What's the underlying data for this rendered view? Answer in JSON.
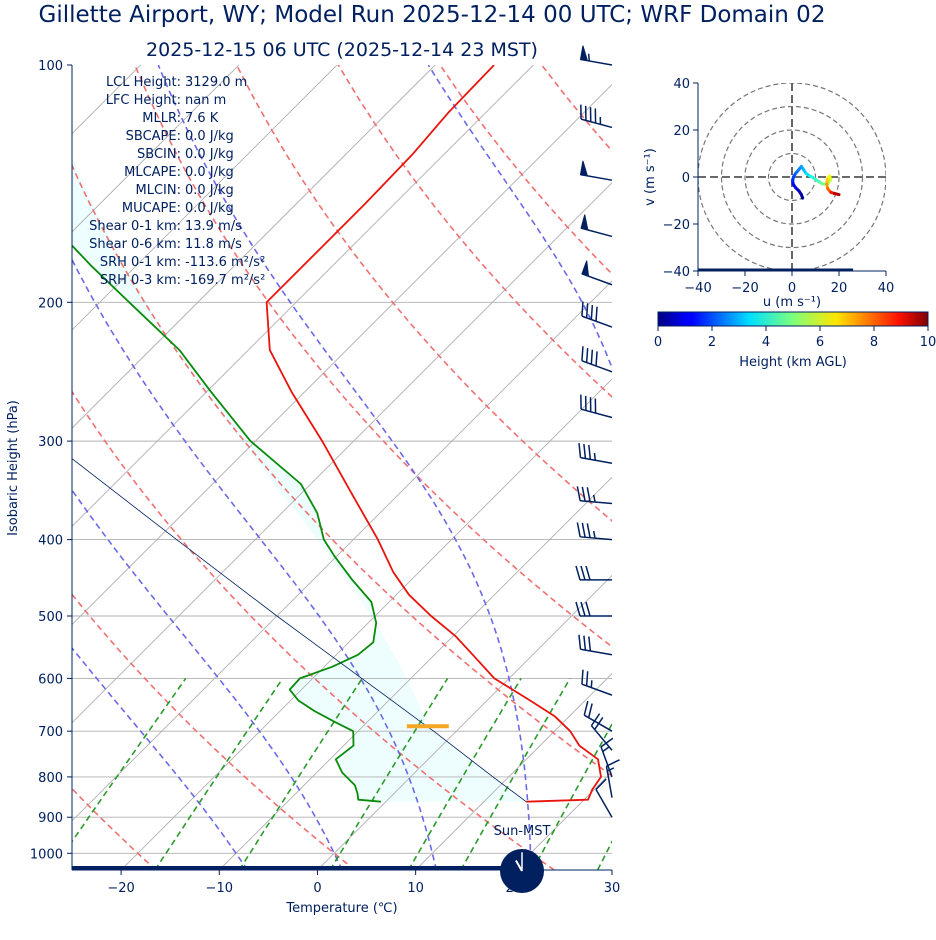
{
  "title": "Gillette  Airport, WY; Model Run 2025-12-14 00 UTC; WRF Domain 02",
  "subtitle": "2025-12-15 06 UTC  (2025-12-14 23 MST)",
  "colors": {
    "text": "#002060",
    "temperature": "#e8140c",
    "dewpoint": "#0a8a0a",
    "dry_adiabat": "#f07070",
    "moist_adiabat": "#6a6ae8",
    "mixing_ratio": "#2a9a2a",
    "isotherm": "#b0b0b0",
    "cape_fill": "#eefefe",
    "lcl_marker": "#f5a623",
    "barbs": "#002060"
  },
  "indices": [
    {
      "label": "LCL Height:",
      "value": "3129.0 m"
    },
    {
      "label": "LFC Height:",
      "value": "nan m"
    },
    {
      "label": "MLLR:",
      "value": "7.6 K"
    },
    {
      "label": "SBCAPE:",
      "value": "0.0 J/kg"
    },
    {
      "label": "SBCIN:",
      "value": "0.0 J/kg"
    },
    {
      "label": "MLCAPE:",
      "value": "0.0 J/kg"
    },
    {
      "label": "MLCIN:",
      "value": "0.0 J/kg"
    },
    {
      "label": "MUCAPE:",
      "value": "0.0 J/kg"
    },
    {
      "label": "Shear 0-1 km:",
      "value": "13.9 m/s"
    },
    {
      "label": "Shear 0-6 km:",
      "value": "11.8 m/s"
    },
    {
      "label": "SRH 0-1 km:",
      "value": "-113.6 m²/s²"
    },
    {
      "label": "SRH 0-3 km:",
      "value": "-169.7 m²/s²"
    }
  ],
  "clock_label": "Sun-MST",
  "clock_time": {
    "hour": 23,
    "minute": 0
  },
  "chart_data": [
    {
      "type": "line",
      "name": "skew-t",
      "xlabel": "Temperature (℃)",
      "ylabel": "Isobaric Height (hPa)",
      "xlim": [
        -25,
        30
      ],
      "ylim": [
        1050,
        100
      ],
      "y_scale": "log",
      "skew": 1.0,
      "x_ticks": [
        "−20",
        "−10",
        "0",
        "10",
        "20",
        "30"
      ],
      "y_ticks": [
        "100",
        "200",
        "300",
        "400",
        "500",
        "600",
        "700",
        "800",
        "900",
        "1000"
      ],
      "x_tick_values": [
        -20,
        -10,
        0,
        10,
        20,
        30
      ],
      "y_tick_values": [
        100,
        200,
        300,
        400,
        500,
        600,
        700,
        800,
        900,
        1000
      ],
      "grid": true,
      "series": [
        {
          "role": "temperature",
          "p": [
            860,
            855,
            830,
            800,
            760,
            730,
            700,
            670,
            640,
            600,
            560,
            530,
            500,
            470,
            440,
            400,
            350,
            300,
            260,
            230,
            200,
            170,
            150,
            130,
            115,
            100
          ],
          "t": [
            14.3,
            20.4,
            19.8,
            19.4,
            17.3,
            14.0,
            11.6,
            8.5,
            4.4,
            -1.5,
            -6.1,
            -9.8,
            -14.3,
            -18.7,
            -22.6,
            -27.5,
            -34.8,
            -43.2,
            -51.3,
            -57.8,
            -63.0,
            -63.0,
            -63.0,
            -63.2,
            -63.8,
            -64.0
          ]
        },
        {
          "role": "dewpoint",
          "p": [
            860,
            855,
            840,
            820,
            790,
            760,
            730,
            700,
            680,
            660,
            640,
            620,
            600,
            580,
            560,
            540,
            510,
            480,
            450,
            420,
            400,
            370,
            340,
            300,
            260,
            230,
            200,
            180,
            160,
            140,
            120,
            100
          ],
          "t": [
            -0.5,
            -3.0,
            -3.7,
            -4.8,
            -7.4,
            -9.4,
            -9.0,
            -10.5,
            -13.5,
            -16.5,
            -19.2,
            -21.2,
            -21.3,
            -19.2,
            -17.8,
            -17.5,
            -19.2,
            -21.8,
            -26.0,
            -30.2,
            -33.0,
            -36.4,
            -41.0,
            -50.5,
            -59.5,
            -67.0,
            -77.0,
            -84.5,
            -92.5,
            -101.0,
            -110.0,
            -118.0
          ]
        },
        {
          "role": "parcel",
          "p": [
            860,
            800,
            700,
            690,
            600,
            500,
            400,
            300,
            250,
            200
          ],
          "t": [
            14.3,
            8.4,
            -2.3,
            -3.5,
            -15.0,
            -30.0,
            -48.0,
            -71.0,
            -84.0,
            -98.0
          ]
        }
      ],
      "lcl": {
        "p": 690,
        "t": -3.4
      },
      "dry_adiabats_theta_c": [
        -40,
        -20,
        0,
        20,
        40,
        60,
        80,
        100,
        120,
        140,
        160,
        180
      ],
      "moist_adiabats_thetaw_c": [
        -10,
        0,
        10,
        20,
        30
      ],
      "mixing_ratios_gkg": [
        0.4,
        1,
        2,
        4,
        7,
        10,
        16,
        24,
        32
      ],
      "isotherms_c": [
        -200,
        -190,
        -180,
        -170,
        -160,
        -150,
        -140,
        -130,
        -120,
        -110,
        -100,
        -90,
        -80,
        -70,
        -60,
        -50,
        -40,
        -30,
        -20,
        -10,
        0,
        10,
        20,
        30
      ],
      "isobars": [
        200,
        300,
        400,
        500,
        600,
        700,
        800,
        900,
        1000
      ],
      "wind_barbs": [
        {
          "p": 100,
          "speed_kt": 55,
          "dir_deg": 280
        },
        {
          "p": 120,
          "speed_kt": 45,
          "dir_deg": 285
        },
        {
          "p": 140,
          "speed_kt": 50,
          "dir_deg": 280
        },
        {
          "p": 165,
          "speed_kt": 50,
          "dir_deg": 285
        },
        {
          "p": 190,
          "speed_kt": 50,
          "dir_deg": 290
        },
        {
          "p": 215,
          "speed_kt": 40,
          "dir_deg": 290
        },
        {
          "p": 245,
          "speed_kt": 40,
          "dir_deg": 290
        },
        {
          "p": 280,
          "speed_kt": 40,
          "dir_deg": 285
        },
        {
          "p": 320,
          "speed_kt": 35,
          "dir_deg": 280
        },
        {
          "p": 360,
          "speed_kt": 35,
          "dir_deg": 275
        },
        {
          "p": 400,
          "speed_kt": 35,
          "dir_deg": 275
        },
        {
          "p": 450,
          "speed_kt": 30,
          "dir_deg": 270
        },
        {
          "p": 500,
          "speed_kt": 30,
          "dir_deg": 270
        },
        {
          "p": 560,
          "speed_kt": 30,
          "dir_deg": 280
        },
        {
          "p": 630,
          "speed_kt": 25,
          "dir_deg": 290
        },
        {
          "p": 700,
          "speed_kt": 20,
          "dir_deg": 300
        },
        {
          "p": 740,
          "speed_kt": 20,
          "dir_deg": 320
        },
        {
          "p": 800,
          "speed_kt": 15,
          "dir_deg": 340
        },
        {
          "p": 850,
          "speed_kt": 15,
          "dir_deg": 350
        },
        {
          "p": 900,
          "speed_kt": 10,
          "dir_deg": 330
        }
      ]
    },
    {
      "type": "line",
      "name": "hodograph",
      "xlabel": "u (m s⁻¹)",
      "ylabel": "v (m s⁻¹)",
      "xlim": [
        -40,
        40
      ],
      "ylim": [
        -40,
        40
      ],
      "x_ticks": [
        "−40",
        "−20",
        "0",
        "20",
        "40"
      ],
      "y_ticks": [
        "−40",
        "−20",
        "0",
        "20",
        "40"
      ],
      "x_tick_values": [
        -40,
        -20,
        0,
        20,
        40
      ],
      "y_tick_values": [
        -40,
        -20,
        0,
        20,
        40
      ],
      "range_rings": [
        10,
        20,
        30,
        40
      ],
      "u": [
        4.5,
        4.0,
        3.0,
        1.5,
        0.5,
        0.3,
        0.6,
        1.5,
        2.8,
        4.0,
        5.0,
        6.0,
        7.5,
        8.5,
        10.0,
        11.5,
        13.0,
        14.5,
        15.5,
        16.5,
        16.0,
        15.0,
        14.8,
        15.2,
        16.5,
        18.0,
        20.0
      ],
      "v": [
        -9.0,
        -7.5,
        -6.0,
        -4.5,
        -3.0,
        -1.5,
        0.0,
        1.5,
        3.0,
        4.5,
        3.0,
        1.5,
        0.5,
        0.0,
        -1.0,
        -2.0,
        -3.0,
        -3.0,
        -2.5,
        -1.0,
        0.5,
        -1.0,
        -3.0,
        -5.0,
        -6.5,
        -7.0,
        -7.5
      ],
      "height_km": [
        0.0,
        0.3,
        0.6,
        0.9,
        1.2,
        1.5,
        1.8,
        2.1,
        2.4,
        2.7,
        3.0,
        3.3,
        3.6,
        3.9,
        4.2,
        4.5,
        4.8,
        5.1,
        5.4,
        5.7,
        6.0,
        6.5,
        7.0,
        7.5,
        8.0,
        9.0,
        10.0
      ]
    },
    {
      "type": "heatmap",
      "name": "colorbar",
      "label": "Height (km AGL)",
      "range": [
        0,
        10
      ],
      "ticks": [
        "0",
        "2",
        "4",
        "6",
        "8",
        "10"
      ],
      "tick_values": [
        0,
        2,
        4,
        6,
        8,
        10
      ],
      "colormap": "jet"
    }
  ]
}
